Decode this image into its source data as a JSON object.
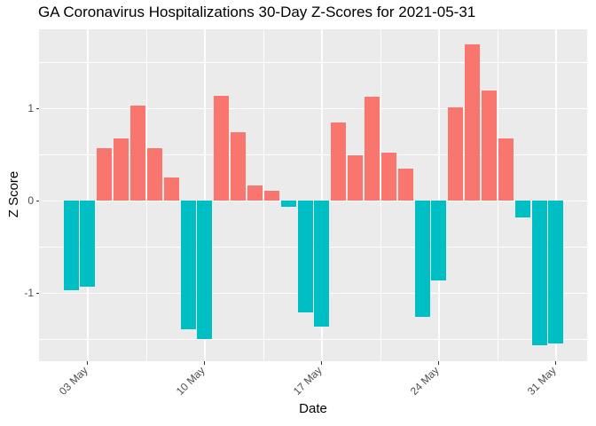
{
  "chart_data": {
    "type": "bar",
    "title": "GA Coronavirus Hospitalizations 30-Day Z-Scores for 2021-05-31",
    "xlabel": "Date",
    "ylabel": "Z Score",
    "dates": [
      "2021-05-02",
      "2021-05-03",
      "2021-05-04",
      "2021-05-05",
      "2021-05-06",
      "2021-05-07",
      "2021-05-08",
      "2021-05-09",
      "2021-05-10",
      "2021-05-11",
      "2021-05-12",
      "2021-05-13",
      "2021-05-14",
      "2021-05-15",
      "2021-05-16",
      "2021-05-17",
      "2021-05-18",
      "2021-05-19",
      "2021-05-20",
      "2021-05-21",
      "2021-05-22",
      "2021-05-23",
      "2021-05-24",
      "2021-05-25",
      "2021-05-26",
      "2021-05-27",
      "2021-05-28",
      "2021-05-29",
      "2021-05-30",
      "2021-05-31"
    ],
    "values": [
      -0.97,
      -0.93,
      0.57,
      0.68,
      1.03,
      0.57,
      0.25,
      -1.39,
      -1.5,
      1.14,
      0.74,
      0.17,
      0.11,
      -0.07,
      -1.21,
      -1.36,
      0.85,
      0.49,
      1.13,
      0.52,
      0.35,
      -1.26,
      -0.86,
      1.01,
      1.7,
      1.2,
      0.68,
      -0.18,
      -1.57,
      -1.55
    ],
    "x_tick_labels": [
      "03 May",
      "10 May",
      "17 May",
      "24 May",
      "31 May"
    ],
    "x_tick_indices": [
      1,
      8,
      15,
      22,
      29
    ],
    "x_minor_indices": [
      4.5,
      11.5,
      18.5,
      25.5
    ],
    "y_tick_labels": [
      "-1",
      "0",
      "1"
    ],
    "y_major_ticks": [
      -1,
      0,
      1
    ],
    "y_minor_ticks": [
      -1.5,
      -0.5,
      0.5,
      1.5
    ],
    "ylim": [
      -1.74,
      1.86
    ],
    "grid": true,
    "legend": "none",
    "colors": {
      "positive": "#F8766D",
      "negative": "#00BFC4",
      "panel_bg": "#EBEBEB",
      "grid": "#FFFFFF",
      "tick_label": "#4D4D4D",
      "tick_mark": "#333333",
      "text": "#000000"
    }
  }
}
